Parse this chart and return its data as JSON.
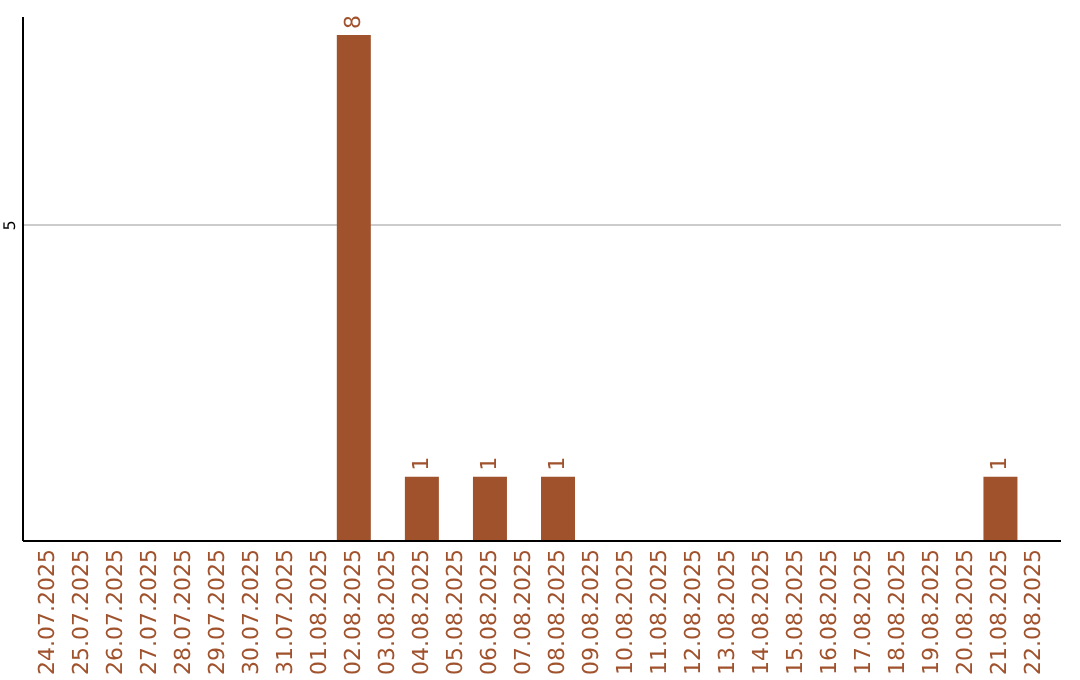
{
  "chart_data": {
    "type": "bar",
    "categories": [
      "24.07.2025",
      "25.07.2025",
      "26.07.2025",
      "27.07.2025",
      "28.07.2025",
      "29.07.2025",
      "30.07.2025",
      "31.07.2025",
      "01.08.2025",
      "02.08.2025",
      "03.08.2025",
      "04.08.2025",
      "05.08.2025",
      "06.08.2025",
      "07.08.2025",
      "08.08.2025",
      "09.08.2025",
      "10.08.2025",
      "11.08.2025",
      "12.08.2025",
      "13.08.2025",
      "14.08.2025",
      "15.08.2025",
      "16.08.2025",
      "17.08.2025",
      "18.08.2025",
      "19.08.2025",
      "20.08.2025",
      "21.08.2025",
      "22.08.2025"
    ],
    "values": [
      0,
      0,
      0,
      0,
      0,
      0,
      0,
      0,
      0,
      8,
      0,
      1,
      0,
      1,
      0,
      1,
      0,
      0,
      0,
      0,
      0,
      0,
      0,
      0,
      0,
      0,
      0,
      0,
      1,
      0
    ],
    "value_labels": [
      null,
      null,
      null,
      null,
      null,
      null,
      null,
      null,
      null,
      "8",
      null,
      "1",
      null,
      "1",
      null,
      "1",
      null,
      null,
      null,
      null,
      null,
      null,
      null,
      null,
      null,
      null,
      null,
      null,
      "1",
      null
    ],
    "color": "#a0522d",
    "ylim": [
      0,
      8.3
    ],
    "yticks": [
      5
    ],
    "grid": "y"
  }
}
